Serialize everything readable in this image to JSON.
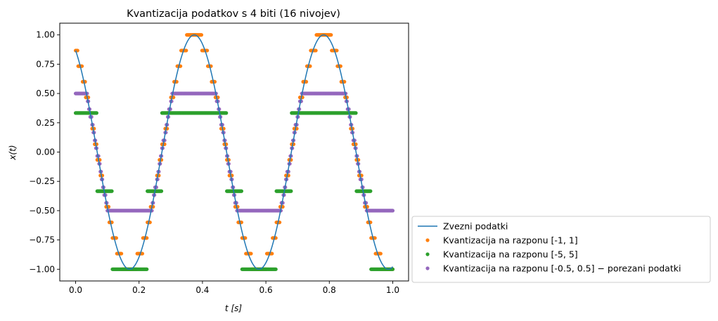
{
  "chart_data": {
    "type": "scatter",
    "title": "Kvantizacija podatkov s 4 biti (16 nivojev)",
    "xlabel": "t [s]",
    "ylabel": "x(t)",
    "xlim": [
      -0.05,
      1.05
    ],
    "ylim": [
      -1.1,
      1.1
    ],
    "x_ticks": [
      "0.0",
      "0.2",
      "0.4",
      "0.6",
      "0.8",
      "1.0"
    ],
    "y_ticks": [
      "1.00",
      "0.75",
      "0.50",
      "0.25",
      "0.00",
      "−0.25",
      "−0.50",
      "−0.75",
      "−1.00"
    ],
    "grid": false,
    "legend_position": "outside-lower-right",
    "signal": {
      "function": "cos",
      "frequency_hz": 2.45,
      "phase_rad": 0.5236,
      "amplitude": 1,
      "t_range": [
        0,
        1
      ],
      "samples": 500
    },
    "series": [
      {
        "name": "Zvezni podatki",
        "kind": "line",
        "color": "#1f77b4"
      },
      {
        "name": "Kvantizacija na razponu [-1, 1]",
        "kind": "points",
        "color": "#ff7f0e",
        "levels": [
          -1.0,
          -0.8667,
          -0.7333,
          -0.6,
          -0.4667,
          -0.3333,
          -0.2,
          -0.0667,
          0.0667,
          0.2,
          0.3333,
          0.4667,
          0.6,
          0.7333,
          0.8667,
          1.0
        ]
      },
      {
        "name": "Kvantizacija na razponu [-5, 5]",
        "kind": "points",
        "color": "#2ca02c",
        "levels": [
          -1.0,
          -0.3333,
          0.3333
        ]
      },
      {
        "name": "Kvantizacija na razponu [-0.5, 0.5] − porezani podatki",
        "kind": "points",
        "color": "#9467bd",
        "levels": [
          -0.5,
          -0.4333,
          -0.3667,
          -0.3,
          -0.2333,
          -0.1667,
          -0.1,
          -0.0333,
          0.0333,
          0.1,
          0.1667,
          0.2333,
          0.3,
          0.3667,
          0.4333,
          0.5
        ]
      }
    ]
  }
}
